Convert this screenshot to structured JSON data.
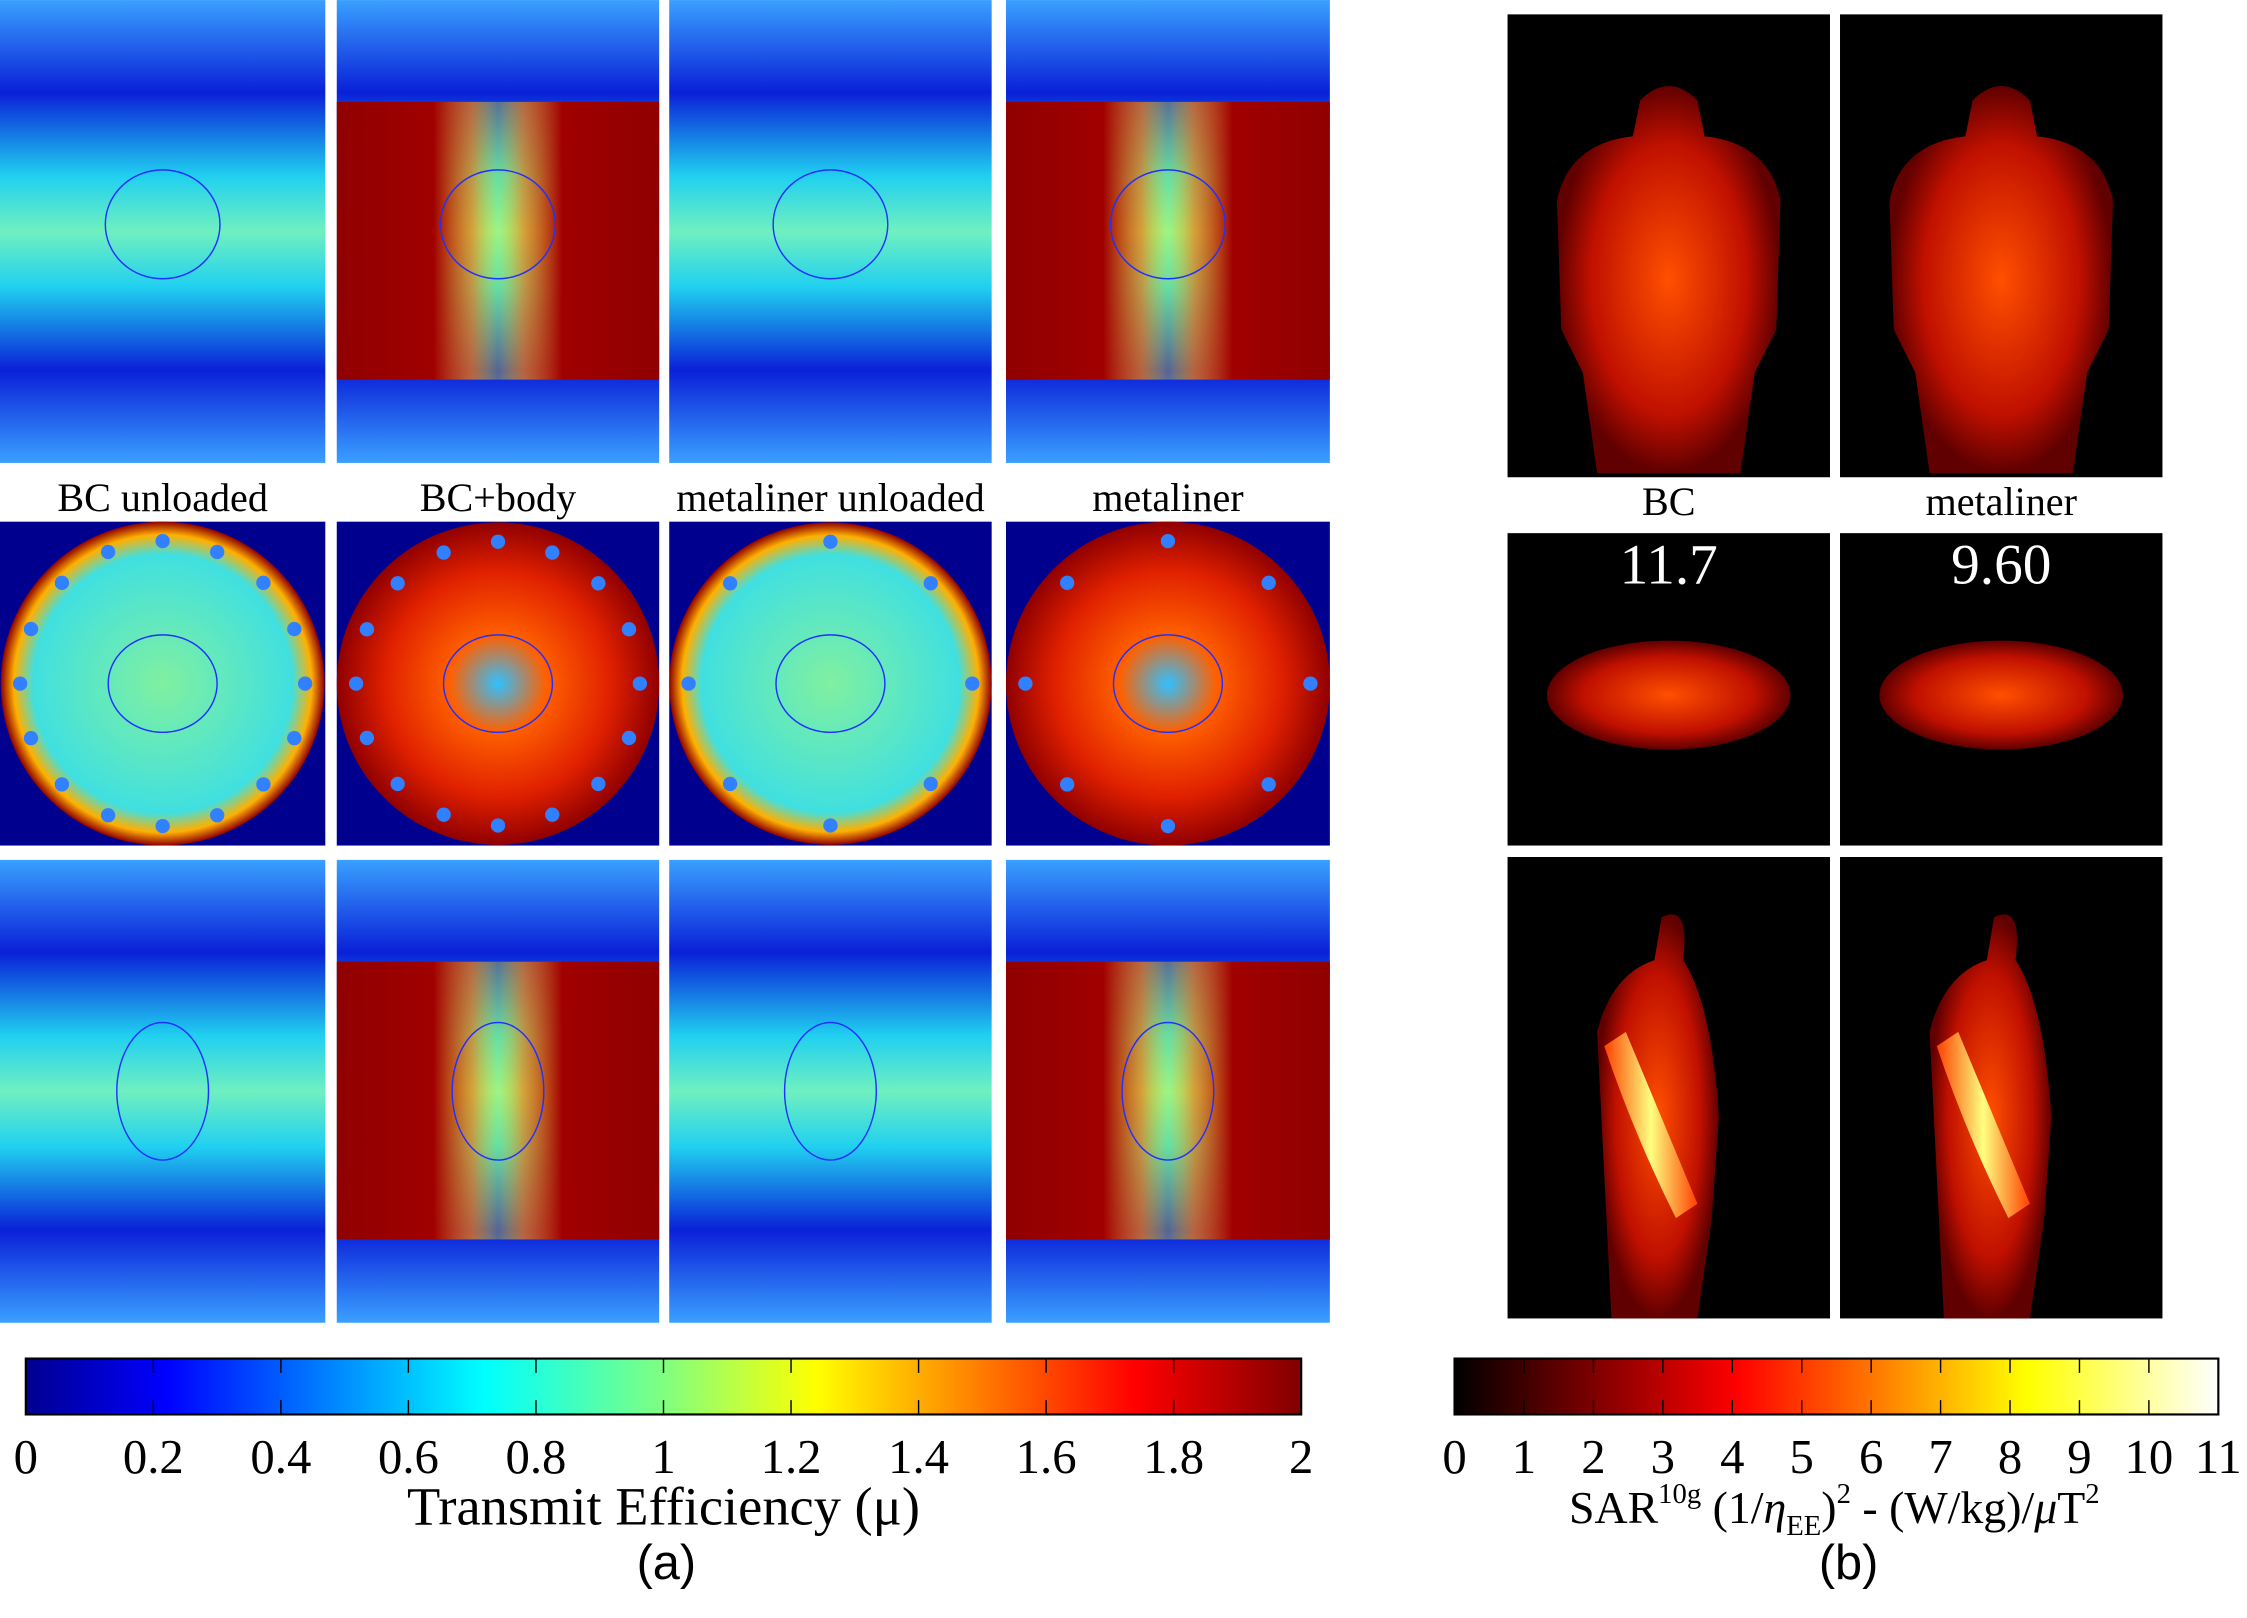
{
  "panel_a": {
    "column_labels": [
      "BC unloaded",
      "BC+body",
      "metaliner unloaded",
      "metaliner"
    ],
    "colorbar": {
      "colormap": "jet",
      "lim": [
        0,
        2
      ],
      "ticks": [
        0,
        0.2,
        0.4,
        0.6,
        0.8,
        1,
        1.2,
        1.4,
        1.6,
        1.8,
        2
      ],
      "label": "Transmit Efficiency (μ)"
    },
    "caption": "(a)"
  },
  "panel_b": {
    "column_labels": [
      "BC",
      "metaliner"
    ],
    "peak_values": [
      "11.7",
      "9.60"
    ],
    "colorbar": {
      "colormap": "hot",
      "lim": [
        0,
        11
      ],
      "ticks": [
        0,
        1,
        2,
        3,
        4,
        5,
        6,
        7,
        8,
        9,
        10,
        11
      ],
      "label_parts": [
        "SAR",
        "10g",
        " (1/",
        "η",
        "EE",
        ")",
        "2",
        " - (W/kg)/",
        "μ",
        "T",
        "2"
      ]
    },
    "caption": "(b)"
  }
}
